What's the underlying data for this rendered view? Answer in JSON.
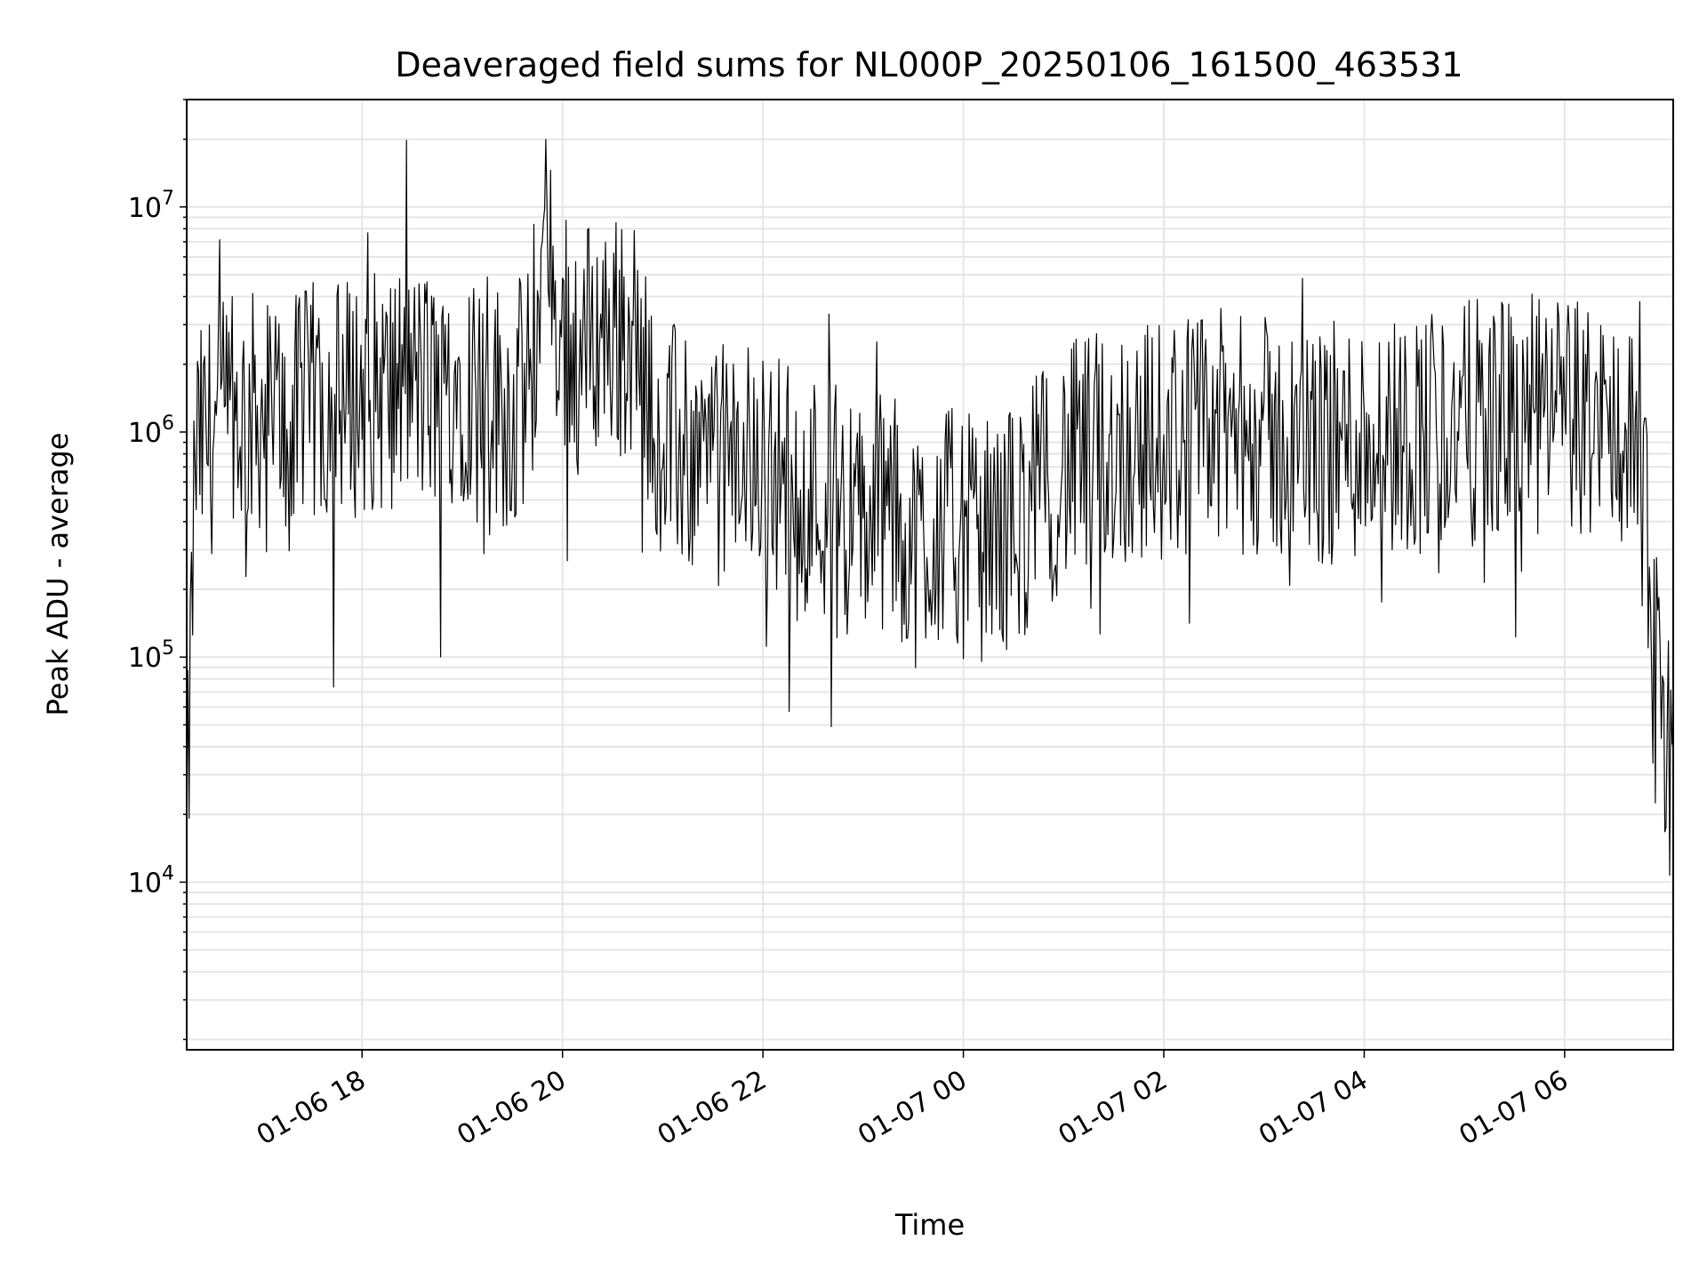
{
  "chart_data": {
    "type": "line",
    "title": "Deaveraged field sums for NL000P_20250106_161500_463531",
    "xlabel": "Time",
    "ylabel": "Peak ADU - average",
    "yscale": "log",
    "ylim": [
      1800,
      30000000
    ],
    "xlim": [
      "2025-01-06 16:15",
      "2025-01-07 07:05"
    ],
    "grid": true,
    "line_color": "#000000",
    "grid_color": "#e6e6e6",
    "x_ticks": [
      "01-06 18",
      "01-06 20",
      "01-06 22",
      "01-07 00",
      "01-07 02",
      "01-07 04",
      "01-07 06"
    ],
    "y_ticks": [
      {
        "base": "10",
        "exp": "4"
      },
      {
        "base": "10",
        "exp": "5"
      },
      {
        "base": "10",
        "exp": "6"
      },
      {
        "base": "10",
        "exp": "7"
      }
    ],
    "series": [
      {
        "x": [
          "2025-01-06 16:15",
          "2025-01-06 16:20",
          "2025-01-06 16:30",
          "2025-01-06 16:45",
          "2025-01-06 17:00",
          "2025-01-06 17:15",
          "2025-01-06 17:30",
          "2025-01-06 17:45",
          "2025-01-06 18:00",
          "2025-01-06 18:15",
          "2025-01-06 18:30",
          "2025-01-06 18:45",
          "2025-01-06 19:00",
          "2025-01-06 19:15",
          "2025-01-06 19:30",
          "2025-01-06 19:40",
          "2025-01-06 19:50",
          "2025-01-06 20:00",
          "2025-01-06 20:10",
          "2025-01-06 20:20",
          "2025-01-06 20:30",
          "2025-01-06 20:45",
          "2025-01-06 21:00",
          "2025-01-06 21:15",
          "2025-01-06 21:30",
          "2025-01-06 21:45",
          "2025-01-06 22:00",
          "2025-01-06 22:15",
          "2025-01-06 22:30",
          "2025-01-06 22:45",
          "2025-01-06 23:00",
          "2025-01-06 23:15",
          "2025-01-06 23:30",
          "2025-01-06 23:45",
          "2025-01-07 00:00",
          "2025-01-07 00:15",
          "2025-01-07 00:30",
          "2025-01-07 00:45",
          "2025-01-07 01:00",
          "2025-01-07 01:15",
          "2025-01-07 01:30",
          "2025-01-07 02:00",
          "2025-01-07 02:30",
          "2025-01-07 03:00",
          "2025-01-07 03:30",
          "2025-01-07 04:00",
          "2025-01-07 04:30",
          "2025-01-07 05:00",
          "2025-01-07 05:30",
          "2025-01-07 06:00",
          "2025-01-07 06:30",
          "2025-01-07 06:45",
          "2025-01-07 06:55",
          "2025-01-07 07:05"
        ],
        "y": [
          18000,
          1000000,
          1300000,
          1500000,
          1600000,
          1400000,
          1700000,
          1800000,
          1900000,
          2000000,
          2100000,
          1900000,
          2200000,
          2000000,
          1500000,
          2200000,
          9000000,
          3000000,
          3200000,
          3500000,
          3600000,
          3000000,
          1200000,
          1000000,
          900000,
          950000,
          1000000,
          800000,
          700000,
          600000,
          500000,
          600000,
          400000,
          500000,
          450000,
          420000,
          500000,
          700000,
          900000,
          1000000,
          1100000,
          1200000,
          1300000,
          1200000,
          1100000,
          1200000,
          1300000,
          1400000,
          1500000,
          1500000,
          1400000,
          1100000,
          80000,
          40000
        ]
      }
    ]
  }
}
